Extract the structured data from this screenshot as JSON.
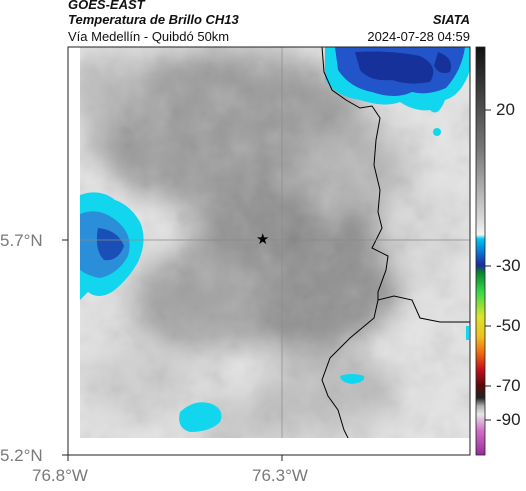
{
  "header": {
    "source": "GOES-EAST",
    "product": "Temperatura de Brillo CH13",
    "region": "Vía Medellín - Quibdó 50km",
    "org": "SIATA",
    "timestamp": "2024-07-28 04:59"
  },
  "axes": {
    "lat_ticks": [
      "5.7°N",
      "5.2°N"
    ],
    "lon_ticks": [
      "76.8°W",
      "76.3°W"
    ]
  },
  "colorbar": {
    "ticks": [
      "20",
      "-30",
      "-50",
      "-70",
      "-90"
    ]
  },
  "map": {
    "marker_symbol": "★",
    "colors": {
      "cold_deep": "#16329a",
      "cold_mid": "#2255c9",
      "cold_edge": "#12d6ee",
      "warm_cloud": "#9e9e9e",
      "clear": "#e9e9e9",
      "border_line": "#000000"
    }
  }
}
